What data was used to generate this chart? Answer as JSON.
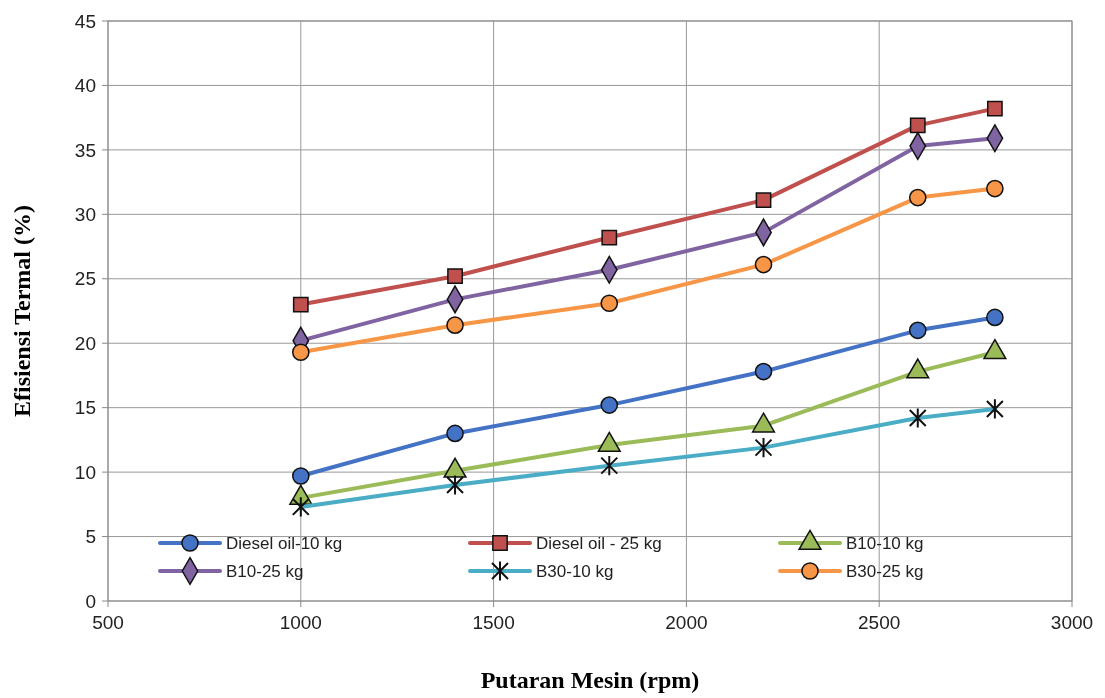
{
  "chart_data": {
    "type": "line",
    "xlabel": "Putaran Mesin (rpm)",
    "ylabel": "Efisiensi Termal (%)",
    "x": [
      1000,
      1400,
      1800,
      2200,
      2600,
      2800
    ],
    "xlim": [
      500,
      3000
    ],
    "xticks": [
      500,
      1000,
      1500,
      2000,
      2500,
      3000
    ],
    "ylim": [
      0,
      45
    ],
    "yticks": [
      0,
      5,
      10,
      15,
      20,
      25,
      30,
      35,
      40,
      45
    ],
    "grid": true,
    "legend": "bottom",
    "line_style": "solid",
    "series": [
      {
        "name": "Diesel oil-10 kg",
        "color": "#4472c4",
        "marker": "circle",
        "values": [
          9.7,
          13.0,
          15.2,
          17.8,
          21.0,
          22.0
        ]
      },
      {
        "name": "Diesel oil - 25 kg",
        "color": "#c0504d",
        "marker": "square",
        "values": [
          23.0,
          25.2,
          28.2,
          31.1,
          36.9,
          38.2
        ]
      },
      {
        "name": "B10-10 kg",
        "color": "#9bbb59",
        "marker": "triangle",
        "values": [
          8.0,
          10.1,
          12.1,
          13.6,
          17.8,
          19.3
        ]
      },
      {
        "name": "B10-25 kg",
        "color": "#8064a2",
        "marker": "diamond",
        "values": [
          20.2,
          23.4,
          25.7,
          28.6,
          35.3,
          35.9
        ]
      },
      {
        "name": "B30-10 kg",
        "color": "#4bacc6",
        "marker": "cross",
        "values": [
          7.3,
          9.0,
          10.5,
          11.9,
          14.2,
          14.9
        ]
      },
      {
        "name": "B30-25 kg",
        "color": "#f79646",
        "marker": "circle",
        "values": [
          19.3,
          21.4,
          23.1,
          26.1,
          31.3,
          32.0
        ]
      }
    ]
  }
}
